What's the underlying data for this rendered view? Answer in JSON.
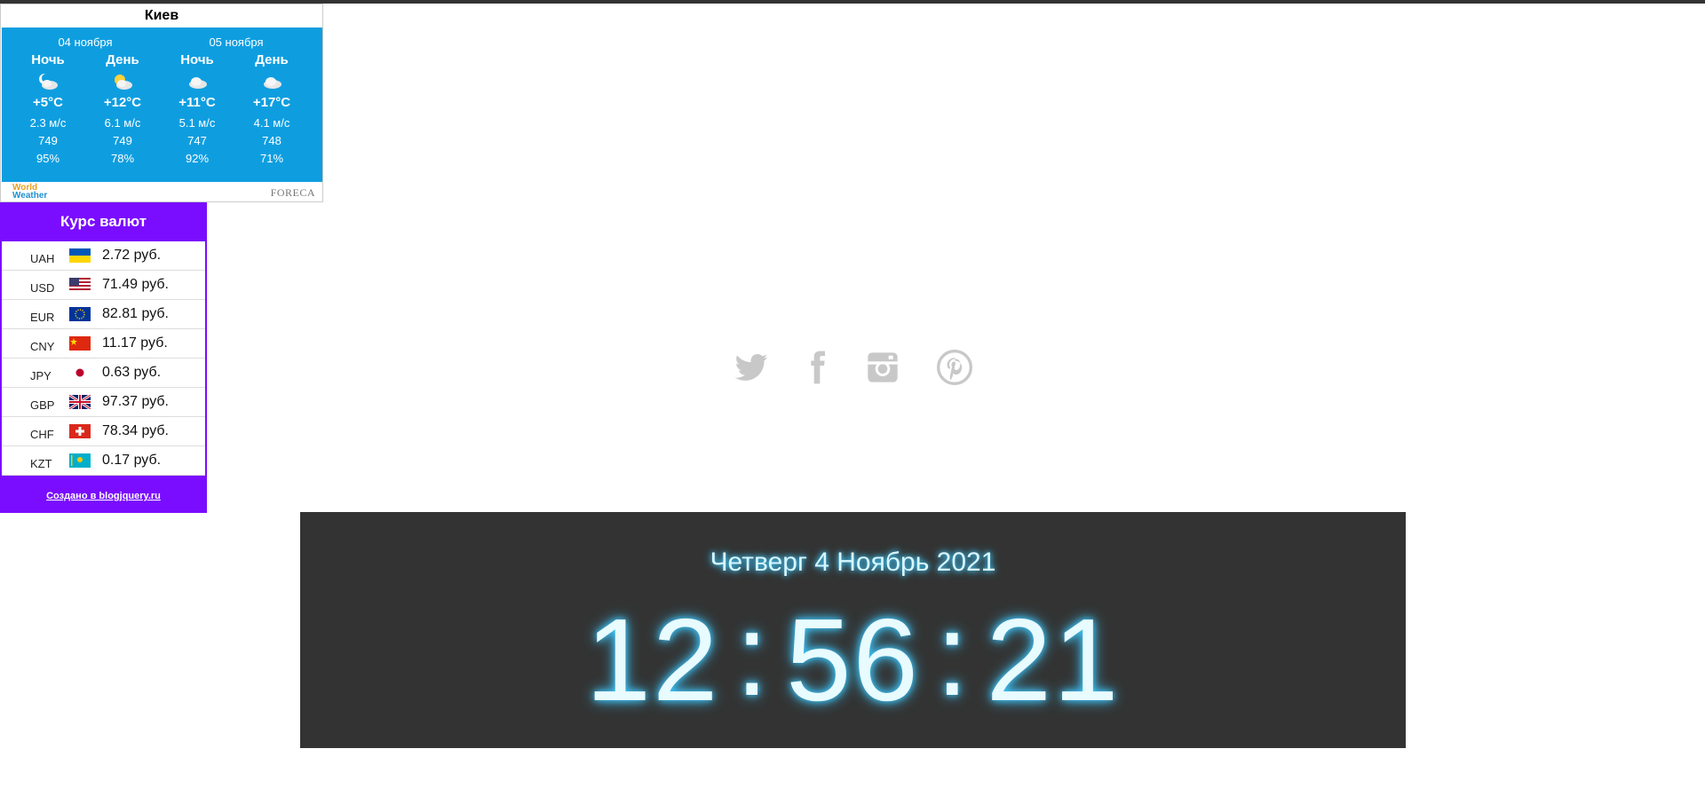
{
  "weather": {
    "city": "Киев",
    "dates": [
      "04 ноября",
      "05 ноября"
    ],
    "columns": [
      {
        "part": "Ночь",
        "icon": "partly-cloudy-night-icon",
        "temp": "+5°C",
        "wind": "2.3 м/с",
        "pressure": "749",
        "humidity": "95%"
      },
      {
        "part": "День",
        "icon": "partly-cloudy-day-icon",
        "temp": "+12°C",
        "wind": "6.1 м/с",
        "pressure": "749",
        "humidity": "78%"
      },
      {
        "part": "Ночь",
        "icon": "cloudy-icon",
        "temp": "+11°C",
        "wind": "5.1 м/с",
        "pressure": "747",
        "humidity": "92%"
      },
      {
        "part": "День",
        "icon": "cloudy-icon",
        "temp": "+17°C",
        "wind": "4.1 м/с",
        "pressure": "748",
        "humidity": "71%"
      }
    ],
    "footer": {
      "brand_left_1": "World",
      "brand_left_2": "Weather",
      "brand_right": "FORECA"
    }
  },
  "currency": {
    "title": "Курс валют",
    "rows": [
      {
        "code": "UAH",
        "flag": "ukraine-flag",
        "rate": "2.72 руб."
      },
      {
        "code": "USD",
        "flag": "usa-flag",
        "rate": "71.49 руб."
      },
      {
        "code": "EUR",
        "flag": "eu-flag",
        "rate": "82.81 руб."
      },
      {
        "code": "CNY",
        "flag": "china-flag",
        "rate": "11.17 руб."
      },
      {
        "code": "JPY",
        "flag": "japan-flag",
        "rate": "0.63 руб."
      },
      {
        "code": "GBP",
        "flag": "uk-flag",
        "rate": "97.37 руб."
      },
      {
        "code": "CHF",
        "flag": "switzerland-flag",
        "rate": "78.34 руб."
      },
      {
        "code": "KZT",
        "flag": "kazakhstan-flag",
        "rate": "0.17 руб."
      }
    ],
    "credit": "Создано в blogjquery.ru"
  },
  "social": [
    "twitter-icon",
    "facebook-icon",
    "instagram-icon",
    "pinterest-icon"
  ],
  "clock": {
    "date": "Четверг 4 Ноябрь 2021",
    "hours": "12",
    "minutes": "56",
    "seconds": "21",
    "separator": ":"
  },
  "colors": {
    "weather_bg": "#0e9ee0",
    "currency_bg": "#7a0cff",
    "clock_bg": "#333333",
    "clock_glow": "#3ec9ff",
    "social_icon": "#c8c8c8"
  }
}
